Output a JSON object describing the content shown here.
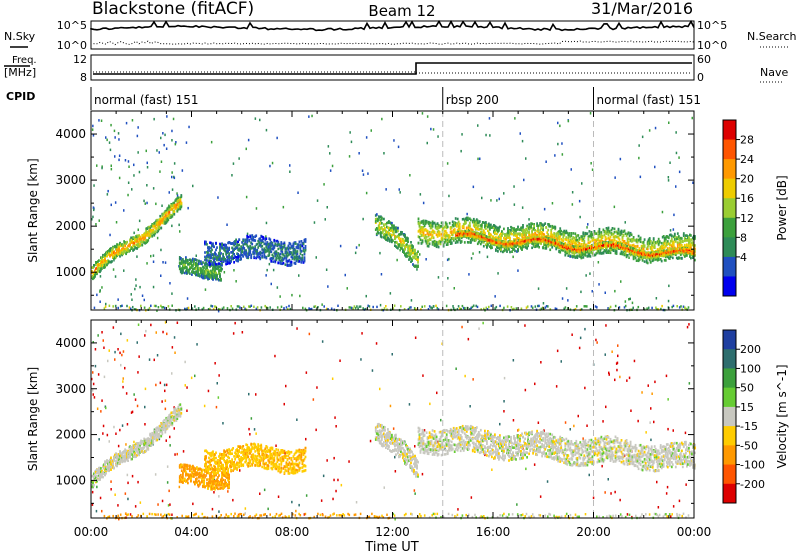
{
  "header": {
    "station": "Blackstone (fitACF)",
    "beam": "Beam 12",
    "date": "31/Mar/2016"
  },
  "labels": {
    "nsky": "N.Sky",
    "nsearch": "N.Search",
    "freq": "Freq.",
    "mhz": "[MHz]",
    "nave": "Nave",
    "cpid": "CPID",
    "nsky_top": "10^5",
    "nsky_bottom": "10^0",
    "nsearch_top": "10^5",
    "nsearch_bottom": "10^0",
    "freq_top": "12",
    "freq_bottom": "8",
    "nave_top": "60",
    "nave_bottom": "0"
  },
  "cpid_modes": [
    {
      "label": "normal (fast) 151",
      "start_hour": 0,
      "end_hour": 14
    },
    {
      "label": "rbsp 200",
      "start_hour": 14,
      "end_hour": 20
    },
    {
      "label": "normal (fast) 151",
      "start_hour": 20,
      "end_hour": 24
    }
  ],
  "power_colorbar": {
    "label": "Power [dB]",
    "ticks": [
      "28",
      "24",
      "20",
      "16",
      "12",
      "8",
      "4"
    ],
    "colors": [
      "#dd0000",
      "#ff5500",
      "#ff9900",
      "#eecc00",
      "#9acd32",
      "#3ca03c",
      "#2e8b57",
      "#2050c0",
      "#0000ee"
    ]
  },
  "velocity_colorbar": {
    "label": "Velocity [m s^-1]",
    "ticks": [
      "200",
      "100",
      "50",
      "15",
      "-15",
      "-50",
      "-100",
      "-200"
    ],
    "colors": [
      "#1f3fa0",
      "#2e6e6e",
      "#3ca03c",
      "#66cc33",
      "#c8c8c0",
      "#ffcc00",
      "#ff9900",
      "#ff5500",
      "#dd0000"
    ]
  },
  "chart_data": [
    {
      "type": "heatmap",
      "panel": "power",
      "ylabel": "Slant Range [km]",
      "xlim_hours": [
        0,
        24
      ],
      "ylim": [
        180,
        4500
      ],
      "yticks": [
        1000,
        2000,
        3000,
        4000
      ],
      "echo_bands": [
        {
          "t0": 0.0,
          "t1": 3.6,
          "r0": 1000,
          "r1": 2500,
          "width": 300,
          "power_db": 20
        },
        {
          "t0": 3.5,
          "t1": 5.2,
          "r0": 1100,
          "r1": 1100,
          "width": 350,
          "power_db": 12
        },
        {
          "t0": 4.5,
          "t1": 8.5,
          "r0": 1500,
          "r1": 1500,
          "width": 500,
          "power_db": 6
        },
        {
          "t0": 11.3,
          "t1": 13.0,
          "r0": 2100,
          "r1": 1300,
          "width": 450,
          "power_db": 16
        },
        {
          "t0": 13.0,
          "t1": 24.0,
          "r0": 1950,
          "r1": 1500,
          "width": 550,
          "power_db": 18
        },
        {
          "t0": 14.5,
          "t1": 24.0,
          "r0": 1800,
          "r1": 1400,
          "width": 120,
          "power_db": 26
        }
      ],
      "ground_scatter_band_km": [
        200,
        300
      ]
    },
    {
      "type": "heatmap",
      "panel": "velocity",
      "ylabel": "Slant Range [km]",
      "xlabel": "Time UT",
      "xlim_hours": [
        0,
        24
      ],
      "ylim": [
        180,
        4500
      ],
      "yticks": [
        1000,
        2000,
        3000,
        4000
      ],
      "xticks": [
        "00:00",
        "04:00",
        "08:00",
        "12:00",
        "16:00",
        "20:00",
        "00:00"
      ],
      "echo_bands": [
        {
          "t0": 0.0,
          "t1": 3.6,
          "r0": 1000,
          "r1": 2500,
          "width": 300,
          "velocity": 0
        },
        {
          "t0": 3.5,
          "t1": 5.5,
          "r0": 1100,
          "r1": 1100,
          "width": 400,
          "velocity": -60
        },
        {
          "t0": 4.5,
          "t1": 8.5,
          "r0": 1500,
          "r1": 1500,
          "width": 500,
          "velocity": -40
        },
        {
          "t0": 11.3,
          "t1": 13.0,
          "r0": 2100,
          "r1": 1300,
          "width": 450,
          "velocity": 0
        },
        {
          "t0": 13.0,
          "t1": 24.0,
          "r0": 1950,
          "r1": 1500,
          "width": 550,
          "velocity": 0
        }
      ],
      "ground_scatter_band_km": [
        200,
        300
      ]
    }
  ]
}
